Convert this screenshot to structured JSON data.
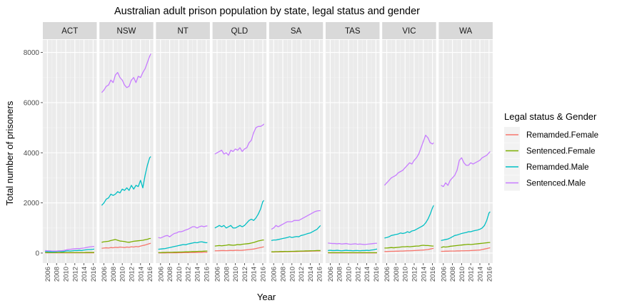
{
  "chart_data": {
    "type": "line",
    "title": "Australian adult prison population by state, legal status and gender",
    "xlabel": "Year",
    "ylabel": "Total number of prisoners",
    "xlim": [
      2005.0,
      2016.8
    ],
    "ylim": [
      -400,
      8500
    ],
    "x_ticks": [
      2006,
      2008,
      2010,
      2012,
      2014,
      2016
    ],
    "y_ticks": [
      0,
      2000,
      4000,
      6000,
      8000
    ],
    "grid": true,
    "facets": [
      "ACT",
      "NSW",
      "NT",
      "QLD",
      "SA",
      "TAS",
      "VIC",
      "WA"
    ],
    "legend": {
      "title": "Legal status & Gender",
      "placement": "right",
      "entries": [
        {
          "name": "Remamded.Female",
          "color": "#F8766D"
        },
        {
          "name": "Sentenced.Female",
          "color": "#7CAE00"
        },
        {
          "name": "Remamded.Male",
          "color": "#00BFC4"
        },
        {
          "name": "Sentenced.Male",
          "color": "#C77CFF"
        }
      ]
    },
    "x": [
      2005.5,
      2006.0,
      2006.5,
      2007.0,
      2007.5,
      2008.0,
      2008.5,
      2009.0,
      2009.5,
      2010.0,
      2010.5,
      2011.0,
      2011.5,
      2012.0,
      2012.5,
      2013.0,
      2013.5,
      2014.0,
      2014.5,
      2015.0,
      2015.5,
      2016.0,
      2016.25
    ],
    "panels": [
      {
        "state": "ACT",
        "series": [
          {
            "name": "Remamded.Female",
            "values": [
              10,
              10,
              10,
              10,
              10,
              10,
              10,
              10,
              10,
              10,
              10,
              10,
              10,
              10,
              10,
              10,
              10,
              10,
              10,
              10,
              10,
              10,
              10
            ]
          },
          {
            "name": "Sentenced.Female",
            "values": [
              20,
              20,
              20,
              20,
              20,
              20,
              20,
              20,
              20,
              20,
              20,
              20,
              20,
              20,
              20,
              20,
              20,
              20,
              25,
              25,
              25,
              25,
              25
            ]
          },
          {
            "name": "Remamded.Male",
            "values": [
              60,
              60,
              50,
              50,
              50,
              60,
              70,
              60,
              60,
              80,
              90,
              80,
              90,
              100,
              100,
              110,
              100,
              120,
              130,
              140,
              140,
              150,
              160
            ]
          },
          {
            "name": "Sentenced.Male",
            "values": [
              100,
              90,
              90,
              80,
              80,
              80,
              90,
              90,
              100,
              120,
              140,
              150,
              160,
              170,
              180,
              180,
              190,
              200,
              220,
              240,
              250,
              260,
              260
            ]
          }
        ]
      },
      {
        "state": "NSW",
        "series": [
          {
            "name": "Remamded.Female",
            "values": [
              190,
              200,
              210,
              200,
              220,
              210,
              230,
              220,
              240,
              230,
              220,
              240,
              230,
              250,
              240,
              260,
              250,
              280,
              300,
              320,
              350,
              380,
              390
            ]
          },
          {
            "name": "Sentenced.Female",
            "values": [
              430,
              450,
              460,
              470,
              500,
              520,
              540,
              510,
              480,
              470,
              460,
              440,
              430,
              450,
              470,
              480,
              490,
              500,
              510,
              530,
              550,
              580,
              580
            ]
          },
          {
            "name": "Remamded.Male",
            "values": [
              1900,
              2000,
              2150,
              2200,
              2350,
              2300,
              2350,
              2450,
              2400,
              2550,
              2500,
              2600,
              2500,
              2700,
              2550,
              2700,
              2650,
              2900,
              2600,
              3100,
              3500,
              3800,
              3850
            ]
          },
          {
            "name": "Sentenced.Male",
            "values": [
              6400,
              6500,
              6650,
              6700,
              6900,
              6800,
              7100,
              7200,
              7000,
              6900,
              6700,
              6600,
              6650,
              6900,
              7000,
              6800,
              7050,
              7000,
              7200,
              7350,
              7600,
              7850,
              7950
            ]
          }
        ]
      },
      {
        "state": "NT",
        "series": [
          {
            "name": "Remamded.Female",
            "values": [
              5,
              5,
              5,
              5,
              8,
              8,
              10,
              10,
              10,
              12,
              12,
              15,
              15,
              15,
              20,
              20,
              20,
              25,
              25,
              25,
              30,
              30,
              30
            ]
          },
          {
            "name": "Sentenced.Female",
            "values": [
              20,
              20,
              25,
              25,
              30,
              30,
              30,
              35,
              35,
              40,
              40,
              45,
              50,
              50,
              55,
              60,
              60,
              65,
              70,
              70,
              75,
              80,
              80
            ]
          },
          {
            "name": "Remamded.Male",
            "values": [
              150,
              160,
              170,
              180,
              200,
              220,
              240,
              260,
              280,
              300,
              320,
              340,
              330,
              360,
              380,
              400,
              420,
              410,
              440,
              450,
              430,
              410,
              420
            ]
          },
          {
            "name": "Sentenced.Male",
            "values": [
              620,
              600,
              640,
              680,
              700,
              650,
              720,
              780,
              800,
              850,
              850,
              880,
              920,
              950,
              1000,
              1050,
              1050,
              1000,
              1050,
              1080,
              1050,
              1080,
              1080
            ]
          }
        ]
      },
      {
        "state": "QLD",
        "series": [
          {
            "name": "Remamded.Female",
            "values": [
              90,
              90,
              95,
              100,
              100,
              95,
              100,
              105,
              100,
              110,
              110,
              105,
              110,
              120,
              130,
              140,
              150,
              160,
              180,
              200,
              220,
              240,
              250
            ]
          },
          {
            "name": "Sentenced.Female",
            "values": [
              280,
              290,
              300,
              290,
              300,
              310,
              330,
              320,
              310,
              320,
              340,
              330,
              350,
              360,
              370,
              380,
              400,
              420,
              450,
              480,
              500,
              520,
              520
            ]
          },
          {
            "name": "Remamded.Male",
            "values": [
              1000,
              1050,
              1100,
              1050,
              1100,
              1000,
              1050,
              1100,
              1000,
              1000,
              1050,
              1100,
              1050,
              1100,
              1200,
              1300,
              1350,
              1300,
              1400,
              1550,
              1750,
              2050,
              2100
            ]
          },
          {
            "name": "Sentenced.Male",
            "values": [
              3950,
              4000,
              4050,
              4100,
              3950,
              4000,
              3900,
              4100,
              4050,
              4150,
              4100,
              4200,
              4050,
              4150,
              4200,
              4400,
              4500,
              4800,
              5000,
              5050,
              5050,
              5100,
              5150
            ]
          }
        ]
      },
      {
        "state": "SA",
        "series": [
          {
            "name": "Remamded.Female",
            "values": [
              40,
              40,
              45,
              45,
              50,
              50,
              55,
              55,
              55,
              60,
              60,
              60,
              65,
              65,
              70,
              70,
              75,
              75,
              80,
              80,
              85,
              85,
              85
            ]
          },
          {
            "name": "Sentenced.Female",
            "values": [
              50,
              50,
              55,
              55,
              60,
              60,
              65,
              60,
              65,
              70,
              70,
              75,
              75,
              80,
              80,
              85,
              85,
              90,
              90,
              95,
              100,
              100,
              100
            ]
          },
          {
            "name": "Remamded.Male",
            "values": [
              500,
              520,
              520,
              540,
              560,
              580,
              600,
              620,
              650,
              620,
              640,
              660,
              650,
              700,
              720,
              750,
              780,
              800,
              850,
              900,
              950,
              1050,
              1100
            ]
          },
          {
            "name": "Sentenced.Male",
            "values": [
              950,
              1000,
              1100,
              1050,
              1100,
              1150,
              1200,
              1250,
              1250,
              1250,
              1300,
              1300,
              1300,
              1350,
              1400,
              1450,
              1500,
              1550,
              1600,
              1650,
              1680,
              1690,
              1690
            ]
          }
        ]
      },
      {
        "state": "TAS",
        "series": [
          {
            "name": "Remamded.Female",
            "values": [
              5,
              5,
              5,
              5,
              5,
              5,
              5,
              5,
              5,
              5,
              5,
              5,
              5,
              5,
              5,
              5,
              5,
              5,
              5,
              5,
              5,
              5,
              5
            ]
          },
          {
            "name": "Sentenced.Female",
            "values": [
              15,
              15,
              15,
              15,
              15,
              15,
              15,
              15,
              15,
              15,
              15,
              15,
              15,
              15,
              15,
              15,
              15,
              15,
              15,
              15,
              15,
              15,
              15
            ]
          },
          {
            "name": "Remamded.Male",
            "values": [
              100,
              110,
              100,
              100,
              110,
              100,
              90,
              100,
              110,
              100,
              100,
              90,
              100,
              100,
              90,
              100,
              100,
              110,
              100,
              120,
              130,
              150,
              160
            ]
          },
          {
            "name": "Sentenced.Male",
            "values": [
              400,
              390,
              380,
              380,
              370,
              380,
              360,
              370,
              380,
              360,
              350,
              360,
              370,
              350,
              360,
              350,
              340,
              350,
              360,
              370,
              380,
              390,
              390
            ]
          }
        ]
      },
      {
        "state": "VIC",
        "series": [
          {
            "name": "Remamded.Female",
            "values": [
              60,
              60,
              65,
              70,
              70,
              75,
              75,
              80,
              80,
              85,
              90,
              90,
              95,
              100,
              105,
              110,
              115,
              120,
              130,
              140,
              160,
              180,
              190
            ]
          },
          {
            "name": "Sentenced.Female",
            "values": [
              200,
              200,
              210,
              220,
              210,
              220,
              230,
              240,
              250,
              250,
              260,
              250,
              260,
              270,
              280,
              280,
              300,
              310,
              300,
              300,
              290,
              280,
              280
            ]
          },
          {
            "name": "Remamded.Male",
            "values": [
              600,
              620,
              650,
              700,
              720,
              740,
              760,
              800,
              780,
              800,
              850,
              820,
              880,
              900,
              950,
              1000,
              1050,
              1100,
              1200,
              1350,
              1550,
              1800,
              1900
            ]
          },
          {
            "name": "Sentenced.Male",
            "values": [
              2700,
              2800,
              2900,
              3000,
              3050,
              3100,
              3200,
              3250,
              3300,
              3400,
              3500,
              3600,
              3550,
              3700,
              3800,
              3950,
              4200,
              4450,
              4700,
              4600,
              4400,
              4350,
              4400
            ]
          }
        ]
      },
      {
        "state": "WA",
        "series": [
          {
            "name": "Remamded.Female",
            "values": [
              70,
              70,
              75,
              75,
              80,
              80,
              80,
              85,
              85,
              90,
              90,
              95,
              95,
              100,
              105,
              110,
              115,
              120,
              140,
              160,
              180,
              200,
              210
            ]
          },
          {
            "name": "Sentenced.Female",
            "values": [
              220,
              250,
              240,
              250,
              270,
              280,
              290,
              300,
              310,
              320,
              330,
              340,
              350,
              340,
              350,
              360,
              370,
              380,
              390,
              400,
              410,
              420,
              420
            ]
          },
          {
            "name": "Remamded.Male",
            "values": [
              500,
              520,
              540,
              560,
              600,
              650,
              700,
              720,
              750,
              780,
              800,
              820,
              850,
              850,
              880,
              900,
              920,
              950,
              1000,
              1100,
              1300,
              1600,
              1650
            ]
          },
          {
            "name": "Sentenced.Male",
            "values": [
              2700,
              2650,
              2800,
              2700,
              2900,
              3000,
              3100,
              3300,
              3700,
              3800,
              3600,
              3500,
              3500,
              3600,
              3550,
              3600,
              3650,
              3700,
              3800,
              3850,
              3900,
              4000,
              4050
            ]
          }
        ]
      }
    ]
  }
}
